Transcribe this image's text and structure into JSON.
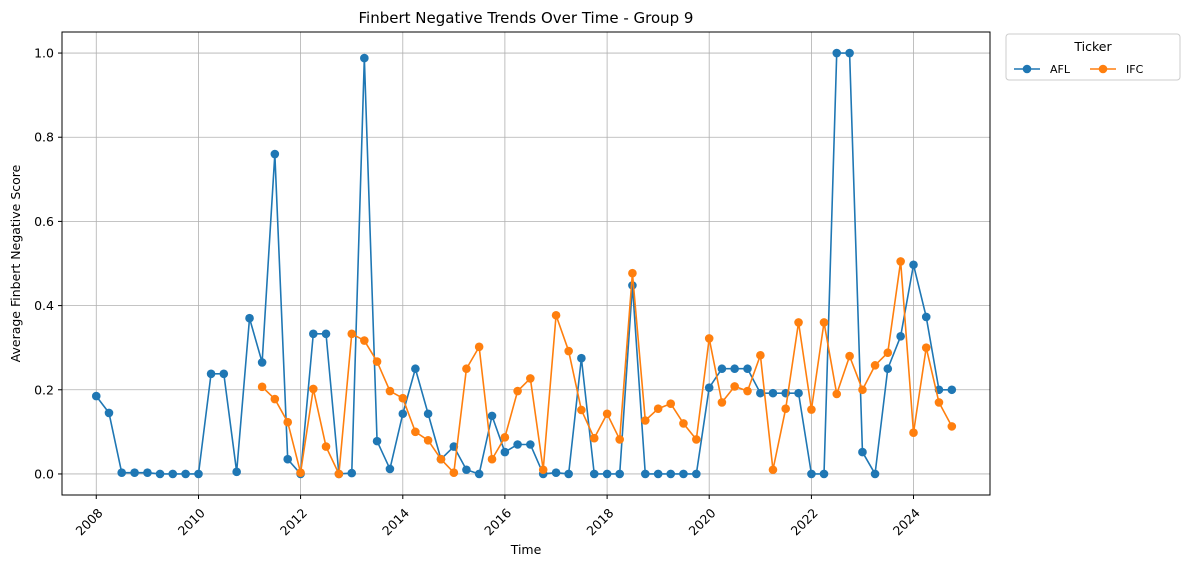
{
  "chart_data": {
    "type": "line",
    "title": "Finbert Negative Trends Over Time - Group 9",
    "xlabel": "Time",
    "ylabel": "Average Finbert Negative Score",
    "x_ticks": [
      "2008",
      "2010",
      "2012",
      "2014",
      "2016",
      "2018",
      "2020",
      "2022",
      "2024"
    ],
    "y_ticks": [
      "0.0",
      "0.2",
      "0.4",
      "0.6",
      "0.8",
      "1.0"
    ],
    "xlim": [
      "2007-05-01",
      "2025-07-01"
    ],
    "ylim": [
      -0.05,
      1.05
    ],
    "grid": true,
    "legend": {
      "title": "Ticker",
      "placement": "outside-top-right"
    },
    "series": [
      {
        "name": "AFL",
        "color": "#1f77b4",
        "points": [
          [
            "2008-01-01",
            0.185
          ],
          [
            "2008-04-01",
            0.145
          ],
          [
            "2008-07-01",
            0.003
          ],
          [
            "2008-10-01",
            0.003
          ],
          [
            "2009-01-01",
            0.003
          ],
          [
            "2009-04-01",
            0.0
          ],
          [
            "2009-07-01",
            0.0
          ],
          [
            "2009-10-01",
            0.0
          ],
          [
            "2010-01-01",
            0.0
          ],
          [
            "2010-04-01",
            0.238
          ],
          [
            "2010-07-01",
            0.238
          ],
          [
            "2010-10-01",
            0.005
          ],
          [
            "2011-01-01",
            0.37
          ],
          [
            "2011-04-01",
            0.265
          ],
          [
            "2011-07-01",
            0.76
          ],
          [
            "2011-10-01",
            0.035
          ],
          [
            "2012-01-01",
            0.0
          ],
          [
            "2012-04-01",
            0.333
          ],
          [
            "2012-07-01",
            0.333
          ],
          [
            "2012-10-01",
            0.0
          ],
          [
            "2013-01-01",
            0.002
          ],
          [
            "2013-04-01",
            0.988
          ],
          [
            "2013-07-01",
            0.078
          ],
          [
            "2013-10-01",
            0.012
          ],
          [
            "2014-01-01",
            0.143
          ],
          [
            "2014-04-01",
            0.25
          ],
          [
            "2014-07-01",
            0.143
          ],
          [
            "2014-10-01",
            0.035
          ],
          [
            "2015-01-01",
            0.065
          ],
          [
            "2015-04-01",
            0.01
          ],
          [
            "2015-07-01",
            0.0
          ],
          [
            "2015-10-01",
            0.138
          ],
          [
            "2016-01-01",
            0.052
          ],
          [
            "2016-04-01",
            0.07
          ],
          [
            "2016-07-01",
            0.07
          ],
          [
            "2016-10-01",
            0.0
          ],
          [
            "2017-01-01",
            0.003
          ],
          [
            "2017-04-01",
            0.0
          ],
          [
            "2017-07-01",
            0.275
          ],
          [
            "2017-10-01",
            0.0
          ],
          [
            "2018-01-01",
            0.0
          ],
          [
            "2018-04-01",
            0.0
          ],
          [
            "2018-07-01",
            0.448
          ],
          [
            "2018-10-01",
            0.0
          ],
          [
            "2019-01-01",
            0.0
          ],
          [
            "2019-04-01",
            0.0
          ],
          [
            "2019-07-01",
            0.0
          ],
          [
            "2019-10-01",
            0.0
          ],
          [
            "2020-01-01",
            0.205
          ],
          [
            "2020-04-01",
            0.25
          ],
          [
            "2020-07-01",
            0.25
          ],
          [
            "2020-10-01",
            0.25
          ],
          [
            "2021-01-01",
            0.192
          ],
          [
            "2021-04-01",
            0.192
          ],
          [
            "2021-07-01",
            0.192
          ],
          [
            "2021-10-01",
            0.192
          ],
          [
            "2022-01-01",
            0.0
          ],
          [
            "2022-04-01",
            0.0
          ],
          [
            "2022-07-01",
            1.0
          ],
          [
            "2022-10-01",
            1.0
          ],
          [
            "2023-01-01",
            0.052
          ],
          [
            "2023-04-01",
            0.0
          ],
          [
            "2023-07-01",
            0.25
          ],
          [
            "2023-10-01",
            0.327
          ],
          [
            "2024-01-01",
            0.497
          ],
          [
            "2024-04-01",
            0.373
          ],
          [
            "2024-07-01",
            0.2
          ],
          [
            "2024-10-01",
            0.2
          ]
        ]
      },
      {
        "name": "IFC",
        "color": "#ff7f0e",
        "points": [
          [
            "2011-04-01",
            0.207
          ],
          [
            "2011-07-01",
            0.178
          ],
          [
            "2011-10-01",
            0.123
          ],
          [
            "2012-01-01",
            0.003
          ],
          [
            "2012-04-01",
            0.202
          ],
          [
            "2012-07-01",
            0.065
          ],
          [
            "2012-10-01",
            0.0
          ],
          [
            "2013-01-01",
            0.333
          ],
          [
            "2013-04-01",
            0.317
          ],
          [
            "2013-07-01",
            0.267
          ],
          [
            "2013-10-01",
            0.197
          ],
          [
            "2014-01-01",
            0.18
          ],
          [
            "2014-04-01",
            0.1
          ],
          [
            "2014-07-01",
            0.08
          ],
          [
            "2014-10-01",
            0.035
          ],
          [
            "2015-01-01",
            0.003
          ],
          [
            "2015-04-01",
            0.25
          ],
          [
            "2015-07-01",
            0.302
          ],
          [
            "2015-10-01",
            0.035
          ],
          [
            "2016-01-01",
            0.087
          ],
          [
            "2016-04-01",
            0.197
          ],
          [
            "2016-07-01",
            0.227
          ],
          [
            "2016-10-01",
            0.01
          ],
          [
            "2017-01-01",
            0.377
          ],
          [
            "2017-04-01",
            0.292
          ],
          [
            "2017-07-01",
            0.152
          ],
          [
            "2017-10-01",
            0.085
          ],
          [
            "2018-01-01",
            0.143
          ],
          [
            "2018-04-01",
            0.082
          ],
          [
            "2018-07-01",
            0.477
          ],
          [
            "2018-10-01",
            0.127
          ],
          [
            "2019-01-01",
            0.155
          ],
          [
            "2019-04-01",
            0.167
          ],
          [
            "2019-07-01",
            0.12
          ],
          [
            "2019-10-01",
            0.082
          ],
          [
            "2020-01-01",
            0.322
          ],
          [
            "2020-04-01",
            0.17
          ],
          [
            "2020-07-01",
            0.208
          ],
          [
            "2020-10-01",
            0.197
          ],
          [
            "2021-01-01",
            0.282
          ],
          [
            "2021-04-01",
            0.01
          ],
          [
            "2021-07-01",
            0.155
          ],
          [
            "2021-10-01",
            0.36
          ],
          [
            "2022-01-01",
            0.153
          ],
          [
            "2022-04-01",
            0.36
          ],
          [
            "2022-07-01",
            0.19
          ],
          [
            "2022-10-01",
            0.28
          ],
          [
            "2023-01-01",
            0.2
          ],
          [
            "2023-04-01",
            0.258
          ],
          [
            "2023-07-01",
            0.288
          ],
          [
            "2023-10-01",
            0.505
          ],
          [
            "2024-01-01",
            0.098
          ],
          [
            "2024-04-01",
            0.3
          ],
          [
            "2024-07-01",
            0.17
          ],
          [
            "2024-10-01",
            0.113
          ]
        ]
      }
    ]
  }
}
